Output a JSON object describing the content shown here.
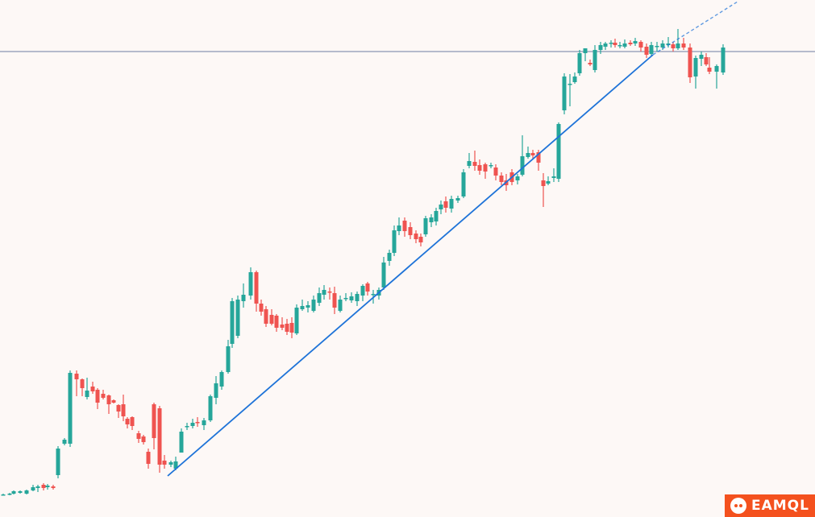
{
  "chart_data": {
    "type": "candlestick",
    "grid": false,
    "legend": "none",
    "y_axis_labels": "none",
    "up_color": "#26a69a",
    "down_color": "#ef5350",
    "trendline_color": "#1e73d8",
    "horizontal_line_color": "#8a94b2",
    "price_domain": [
      0,
      642
    ],
    "horizontal_level": 578,
    "trendline": {
      "from": [
        26,
        51
      ],
      "to": [
        101,
        574
      ],
      "extension_to": [
        115,
        640
      ]
    },
    "candles": [
      [
        4,
        28,
        28,
        27,
        29
      ],
      [
        12,
        28,
        29,
        27,
        30
      ],
      [
        17,
        29,
        32,
        28,
        33
      ],
      [
        25,
        30,
        32,
        29,
        33
      ],
      [
        33,
        29,
        33,
        28,
        34
      ],
      [
        41,
        33,
        37,
        32,
        40
      ],
      [
        47,
        36,
        38,
        31,
        40
      ],
      [
        54,
        40,
        36,
        33,
        42
      ],
      [
        59,
        37,
        39,
        34,
        41
      ],
      [
        66,
        38,
        36,
        34,
        40
      ],
      [
        72,
        52,
        85,
        48,
        88
      ],
      [
        80,
        91,
        96,
        89,
        98
      ],
      [
        87,
        91,
        179,
        87,
        182
      ],
      [
        95,
        178,
        171,
        150,
        182
      ],
      [
        102,
        171,
        160,
        150,
        172
      ],
      [
        108,
        149,
        157,
        146,
        173
      ],
      [
        115,
        162,
        156,
        153,
        168
      ],
      [
        121,
        158,
        142,
        134,
        160
      ],
      [
        128,
        153,
        148,
        146,
        158
      ],
      [
        135,
        151,
        140,
        128,
        152
      ],
      [
        141,
        145,
        142,
        141,
        146
      ],
      [
        147,
        139,
        131,
        123,
        140
      ],
      [
        153,
        140,
        125,
        119,
        152
      ],
      [
        158,
        122,
        115,
        110,
        124
      ],
      [
        164,
        124,
        113,
        108,
        125
      ],
      [
        172,
        104,
        97,
        92,
        107
      ],
      [
        178,
        100,
        93,
        90,
        102
      ],
      [
        184,
        81,
        66,
        60,
        85
      ],
      [
        191,
        140,
        98,
        84,
        142
      ],
      [
        198,
        135,
        65,
        55,
        138
      ],
      [
        204,
        70,
        65,
        60,
        77
      ],
      [
        212,
        65,
        68,
        62,
        70
      ],
      [
        218,
        60,
        69,
        58,
        75
      ],
      [
        225,
        80,
        106,
        80,
        110
      ],
      [
        232,
        112,
        113,
        108,
        117
      ],
      [
        239,
        113,
        117,
        110,
        122
      ],
      [
        245,
        118,
        117,
        112,
        124
      ],
      [
        253,
        114,
        120,
        108,
        123
      ],
      [
        261,
        120,
        150,
        118,
        152
      ],
      [
        268,
        148,
        166,
        140,
        175
      ],
      [
        275,
        162,
        180,
        158,
        182
      ],
      [
        283,
        180,
        212,
        178,
        220
      ],
      [
        288,
        215,
        268,
        210,
        272
      ],
      [
        295,
        225,
        270,
        222,
        275
      ],
      [
        302,
        268,
        276,
        260,
        290
      ],
      [
        311,
        275,
        304,
        270,
        310
      ],
      [
        318,
        304,
        265,
        255,
        306
      ],
      [
        324,
        265,
        255,
        250,
        270
      ],
      [
        330,
        258,
        240,
        236,
        262
      ],
      [
        337,
        251,
        240,
        238,
        258
      ],
      [
        343,
        250,
        235,
        230,
        252
      ],
      [
        350,
        239,
        235,
        232,
        248
      ],
      [
        356,
        240,
        230,
        226,
        246
      ],
      [
        362,
        241,
        229,
        222,
        248
      ],
      [
        368,
        228,
        260,
        226,
        264
      ],
      [
        375,
        258,
        262,
        256,
        270
      ],
      [
        382,
        260,
        263,
        254,
        268
      ],
      [
        389,
        256,
        270,
        254,
        275
      ],
      [
        396,
        266,
        278,
        262,
        285
      ],
      [
        402,
        276,
        282,
        270,
        288
      ],
      [
        409,
        280,
        279,
        270,
        285
      ],
      [
        415,
        278,
        260,
        252,
        286
      ],
      [
        422,
        256,
        270,
        254,
        275
      ],
      [
        429,
        271,
        272,
        268,
        278
      ],
      [
        436,
        269,
        274,
        266,
        279
      ],
      [
        443,
        268,
        277,
        262,
        280
      ],
      [
        450,
        275,
        287,
        268,
        289
      ],
      [
        456,
        290,
        280,
        275,
        292
      ],
      [
        463,
        276,
        277,
        265,
        282
      ],
      [
        470,
        275,
        282,
        270,
        285
      ],
      [
        476,
        285,
        316,
        282,
        323
      ],
      [
        483,
        318,
        328,
        312,
        332
      ],
      [
        489,
        328,
        356,
        324,
        362
      ],
      [
        495,
        355,
        362,
        350,
        372
      ],
      [
        502,
        368,
        355,
        348,
        372
      ],
      [
        509,
        360,
        350,
        345,
        366
      ],
      [
        516,
        352,
        345,
        340,
        356
      ],
      [
        522,
        348,
        341,
        336,
        352
      ],
      [
        528,
        351,
        371,
        348,
        374
      ],
      [
        535,
        366,
        372,
        360,
        376
      ],
      [
        541,
        367,
        380,
        362,
        384
      ],
      [
        547,
        382,
        388,
        376,
        393
      ],
      [
        553,
        392,
        384,
        378,
        398
      ],
      [
        560,
        383,
        395,
        378,
        399
      ],
      [
        568,
        393,
        396,
        390,
        399
      ],
      [
        575,
        398,
        428,
        396,
        432
      ],
      [
        582,
        436,
        442,
        433,
        452
      ],
      [
        589,
        441,
        436,
        430,
        455
      ],
      [
        595,
        437,
        430,
        425,
        444
      ],
      [
        602,
        438,
        429,
        420,
        440
      ],
      [
        609,
        436,
        437,
        433,
        440
      ],
      [
        615,
        434,
        424,
        418,
        438
      ],
      [
        622,
        424,
        416,
        412,
        428
      ],
      [
        628,
        418,
        412,
        405,
        426
      ],
      [
        635,
        428,
        416,
        412,
        432
      ],
      [
        642,
        418,
        423,
        413,
        426
      ],
      [
        648,
        425,
        448,
        423,
        474
      ],
      [
        655,
        447,
        452,
        445,
        460
      ],
      [
        661,
        452,
        449,
        445,
        456
      ],
      [
        668,
        453,
        440,
        430,
        456
      ],
      [
        674,
        418,
        411,
        385,
        427
      ],
      [
        680,
        414,
        417,
        412,
        423
      ],
      [
        687,
        421,
        423,
        416,
        433
      ],
      [
        693,
        420,
        488,
        416,
        490
      ],
      [
        700,
        505,
        547,
        500,
        551
      ],
      [
        707,
        537,
        538,
        510,
        550
      ],
      [
        713,
        540,
        547,
        538,
        552
      ],
      [
        719,
        551,
        576,
        548,
        580
      ],
      [
        726,
        576,
        582,
        566,
        580
      ],
      [
        732,
        564,
        562,
        560,
        568
      ],
      [
        738,
        555,
        580,
        552,
        586
      ],
      [
        745,
        580,
        586,
        575,
        590
      ],
      [
        751,
        584,
        588,
        580,
        590
      ],
      [
        758,
        588,
        589,
        583,
        592
      ],
      [
        763,
        589,
        586,
        583,
        594
      ],
      [
        769,
        586,
        586,
        582,
        590
      ],
      [
        775,
        584,
        588,
        582,
        593
      ],
      [
        782,
        589,
        587,
        585,
        592
      ],
      [
        788,
        588,
        591,
        585,
        595
      ],
      [
        795,
        590,
        583,
        578,
        592
      ],
      [
        802,
        584,
        574,
        570,
        588
      ],
      [
        808,
        575,
        586,
        573,
        590
      ],
      [
        815,
        584,
        585,
        578,
        590
      ],
      [
        822,
        583,
        588,
        580,
        592
      ],
      [
        829,
        586,
        588,
        583,
        596
      ],
      [
        835,
        587,
        582,
        578,
        590
      ],
      [
        841,
        582,
        588,
        580,
        606
      ],
      [
        848,
        588,
        583,
        580,
        595
      ],
      [
        856,
        583,
        546,
        539,
        588
      ],
      [
        863,
        547,
        570,
        532,
        573
      ],
      [
        870,
        569,
        574,
        560,
        578
      ],
      [
        876,
        571,
        562,
        560,
        576
      ],
      [
        880,
        558,
        553,
        550,
        571
      ],
      [
        889,
        553,
        560,
        532,
        562
      ],
      [
        897,
        552,
        583,
        549,
        587
      ]
    ]
  },
  "branding": {
    "logo_text": "EAMQL",
    "logo_bg": "#f4511e"
  }
}
